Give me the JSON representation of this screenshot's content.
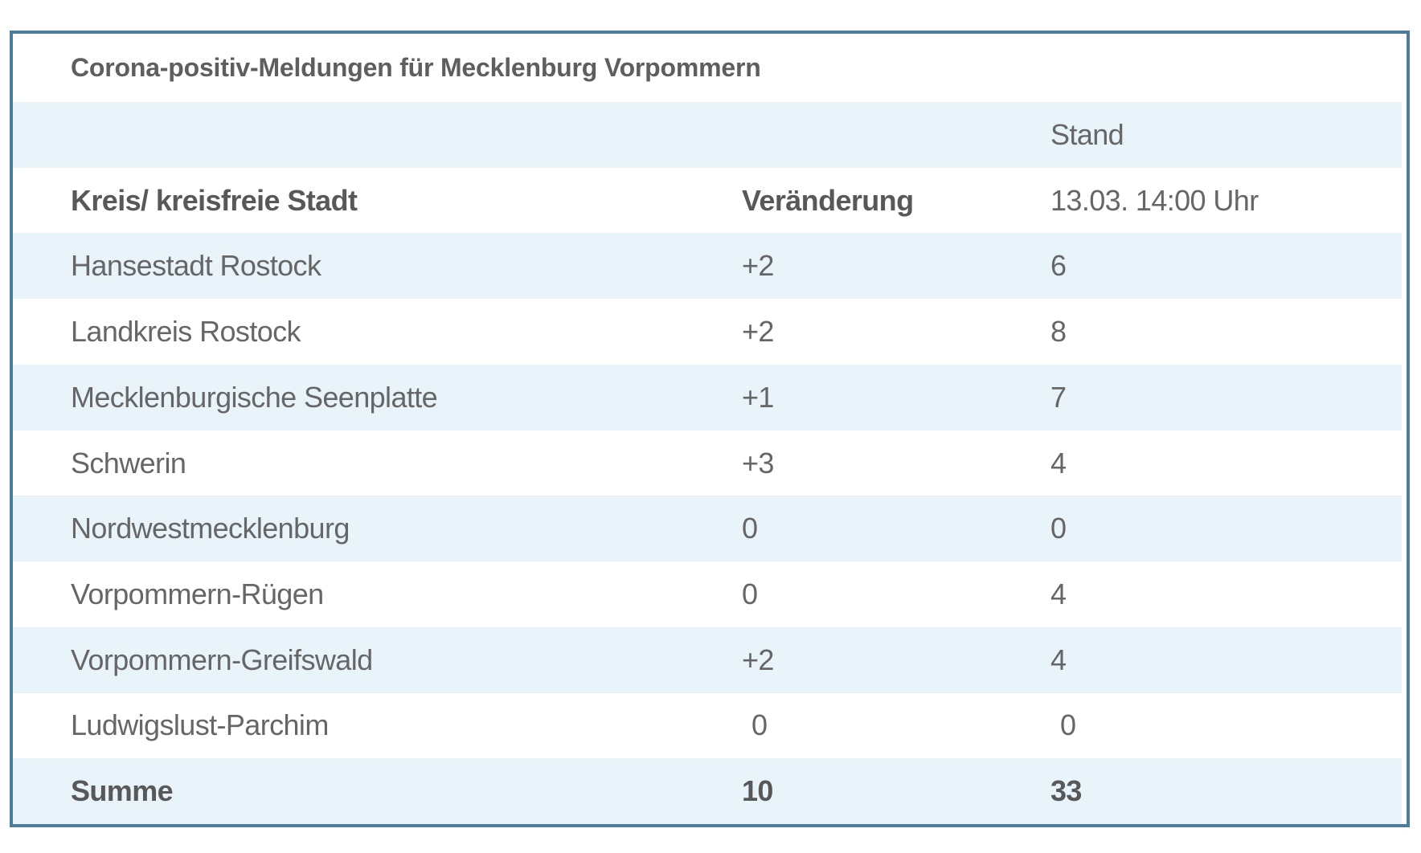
{
  "table": {
    "title": "Corona-positiv-Meldungen für Mecklenburg Vorpommern",
    "pre_header": {
      "col3": "Stand"
    },
    "header": {
      "col1": "Kreis/ kreisfreie Stadt",
      "col2": "Veränderung",
      "col3": "13.03. 14:00 Uhr"
    },
    "rows": [
      {
        "name": "Hansestadt Rostock",
        "change": "+2",
        "count": "6"
      },
      {
        "name": "Landkreis Rostock",
        "change": "+2",
        "count": "8"
      },
      {
        "name": "Mecklenburgische Seenplatte",
        "change": "+1",
        "count": "7"
      },
      {
        "name": "Schwerin",
        "change": "+3",
        "count": "4"
      },
      {
        "name": "Nordwestmecklenburg",
        "change": "0",
        "count": "0"
      },
      {
        "name": "Vorpommern-Rügen",
        "change": "0",
        "count": "4"
      },
      {
        "name": "Vorpommern-Greifswald",
        "change": "+2",
        "count": "4"
      },
      {
        "name": "Ludwigslust-Parchim",
        "change": "0",
        "count": "0"
      }
    ],
    "summary": {
      "name": "Summe",
      "change": "10",
      "count": "33"
    },
    "colors": {
      "border": "#4d7c9b",
      "row_alt_blue": "#e8f4fa",
      "text_regular": "#666666",
      "text_bold": "#585858"
    }
  },
  "chart_data": {
    "type": "table",
    "title": "Corona-positiv-Meldungen für Mecklenburg Vorpommern",
    "columns": [
      "Kreis/ kreisfreie Stadt",
      "Veränderung",
      "Stand 13.03. 14:00 Uhr"
    ],
    "rows": [
      [
        "Hansestadt Rostock",
        "+2",
        6
      ],
      [
        "Landkreis Rostock",
        "+2",
        8
      ],
      [
        "Mecklenburgische Seenplatte",
        "+1",
        7
      ],
      [
        "Schwerin",
        "+3",
        4
      ],
      [
        "Nordwestmecklenburg",
        "0",
        0
      ],
      [
        "Vorpommern-Rügen",
        "0",
        4
      ],
      [
        "Vorpommern-Greifswald",
        "+2",
        4
      ],
      [
        "Ludwigslust-Parchim",
        "0",
        0
      ]
    ],
    "summary_row": [
      "Summe",
      10,
      33
    ],
    "layout": {
      "zebra_striping": true,
      "first_data_row_shaded": true,
      "grid": false
    }
  }
}
